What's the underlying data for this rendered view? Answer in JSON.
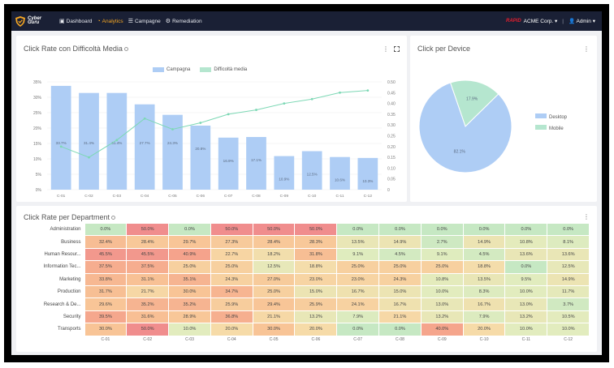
{
  "navbar": {
    "logo_text_1": "Cyber",
    "logo_text_2": "Guru",
    "items": [
      {
        "label": "Dashboard",
        "icon": "dashboard-icon",
        "active": false
      },
      {
        "label": "Analytics",
        "icon": "analytics-icon",
        "active": true
      },
      {
        "label": "Campagne",
        "icon": "campaign-icon",
        "active": false
      },
      {
        "label": "Remediation",
        "icon": "remediation-icon",
        "active": false
      }
    ],
    "brand_tag": "RAPID",
    "org": "ACME Corp.",
    "user": "Admin"
  },
  "click_rate_card": {
    "title": "Click Rate con Difficoltà Media",
    "legend_campagna": "Campagna",
    "legend_difficolta": "Difficoltà media"
  },
  "device_card": {
    "title": "Click per Device",
    "legend_desktop": "Desktop",
    "legend_mobile": "Mobile"
  },
  "department_card": {
    "title": "Click Rate per Department"
  },
  "colors": {
    "bar": "#aecdf5",
    "line": "#7dd8b5",
    "desktop": "#aecdf5",
    "mobile": "#b5e6cf"
  },
  "chart_data": [
    {
      "type": "bar",
      "title": "Click Rate con Difficoltà Media",
      "categories": [
        "C-01",
        "C-02",
        "C-03",
        "C-04",
        "C-05",
        "C-06",
        "C-07",
        "C-08",
        "C-09",
        "C-10",
        "C-11",
        "C-12"
      ],
      "series": [
        {
          "name": "Campagna",
          "type": "bar",
          "axis": "left",
          "values": [
            33.7,
            31.4,
            31.4,
            27.7,
            24.3,
            20.8,
            16.9,
            17.1,
            10.9,
            12.5,
            10.6,
            10.3
          ]
        },
        {
          "name": "Difficoltà media",
          "type": "line",
          "axis": "right",
          "values": [
            0.2,
            0.15,
            0.23,
            0.33,
            0.28,
            0.31,
            0.35,
            0.37,
            0.4,
            0.42,
            0.45,
            0.46
          ]
        }
      ],
      "point_labels": [
        "33.7%",
        "31.4%",
        "31.4%",
        "27.7%",
        "24.3%",
        "20.8%",
        "16.9%",
        "17.1%",
        "10.9%",
        "12.5%",
        "10.6%",
        "10.3%"
      ],
      "y_left_ticks": [
        "0%",
        "5%",
        "10%",
        "15%",
        "20%",
        "25%",
        "30%",
        "35%"
      ],
      "y_right_ticks": [
        "0",
        "0.05",
        "0.10",
        "0.15",
        "0.20",
        "0.25",
        "0.30",
        "0.35",
        "0.40",
        "0.45",
        "0.50"
      ],
      "ylim_left": [
        0,
        35
      ],
      "ylim_right": [
        0,
        0.5
      ],
      "legend": "top-center"
    },
    {
      "type": "pie",
      "title": "Click per Device",
      "labels": [
        "Desktop",
        "Mobile"
      ],
      "values": [
        82.1,
        17.9
      ],
      "slice_labels": [
        "82.1%",
        "17.9%"
      ],
      "legend": "right"
    },
    {
      "type": "heatmap",
      "title": "Click Rate per Department",
      "rows": [
        "Administration",
        "Business",
        "Human Resour...",
        "Information Tec...",
        "Marketing",
        "Production",
        "Research & De...",
        "Security",
        "Transports"
      ],
      "columns": [
        "C-01",
        "C-02",
        "C-03",
        "C-04",
        "C-05",
        "C-06",
        "C-07",
        "C-08",
        "C-09",
        "C-10",
        "C-11",
        "C-12"
      ],
      "values": [
        [
          "0.0%",
          "50.0%",
          "0.0%",
          "50.0%",
          "50.0%",
          "50.0%",
          "0.0%",
          "0.0%",
          "0.0%",
          "0.0%",
          "0.0%",
          "0.0%"
        ],
        [
          "32.4%",
          "28.4%",
          "29.7%",
          "27.3%",
          "28.4%",
          "28.3%",
          "13.5%",
          "14.9%",
          "2.7%",
          "14.9%",
          "10.8%",
          "8.1%"
        ],
        [
          "45.5%",
          "45.5%",
          "40.9%",
          "22.7%",
          "18.2%",
          "31.8%",
          "9.1%",
          "4.5%",
          "9.1%",
          "4.5%",
          "13.6%",
          "13.6%"
        ],
        [
          "37.5%",
          "37.5%",
          "25.0%",
          "25.0%",
          "12.5%",
          "18.8%",
          "25.0%",
          "25.0%",
          "25.0%",
          "18.8%",
          "0.0%",
          "12.5%"
        ],
        [
          "33.8%",
          "31.1%",
          "35.1%",
          "24.3%",
          "27.0%",
          "23.0%",
          "23.0%",
          "24.3%",
          "10.8%",
          "13.5%",
          "9.5%",
          "14.9%"
        ],
        [
          "31.7%",
          "21.7%",
          "30.0%",
          "34.7%",
          "25.0%",
          "15.0%",
          "16.7%",
          "15.0%",
          "10.0%",
          "8.3%",
          "10.0%",
          "11.7%"
        ],
        [
          "29.6%",
          "35.2%",
          "35.2%",
          "25.9%",
          "29.4%",
          "25.9%",
          "24.1%",
          "16.7%",
          "13.0%",
          "16.7%",
          "13.0%",
          "3.7%"
        ],
        [
          "39.5%",
          "31.6%",
          "28.9%",
          "36.8%",
          "21.1%",
          "13.2%",
          "7.9%",
          "21.1%",
          "13.2%",
          "7.9%",
          "13.2%",
          "10.5%"
        ],
        [
          "30.0%",
          "50.0%",
          "10.0%",
          "20.0%",
          "30.0%",
          "20.0%",
          "0.0%",
          "0.0%",
          "40.0%",
          "20.0%",
          "10.0%",
          "10.0%"
        ]
      ]
    }
  ]
}
